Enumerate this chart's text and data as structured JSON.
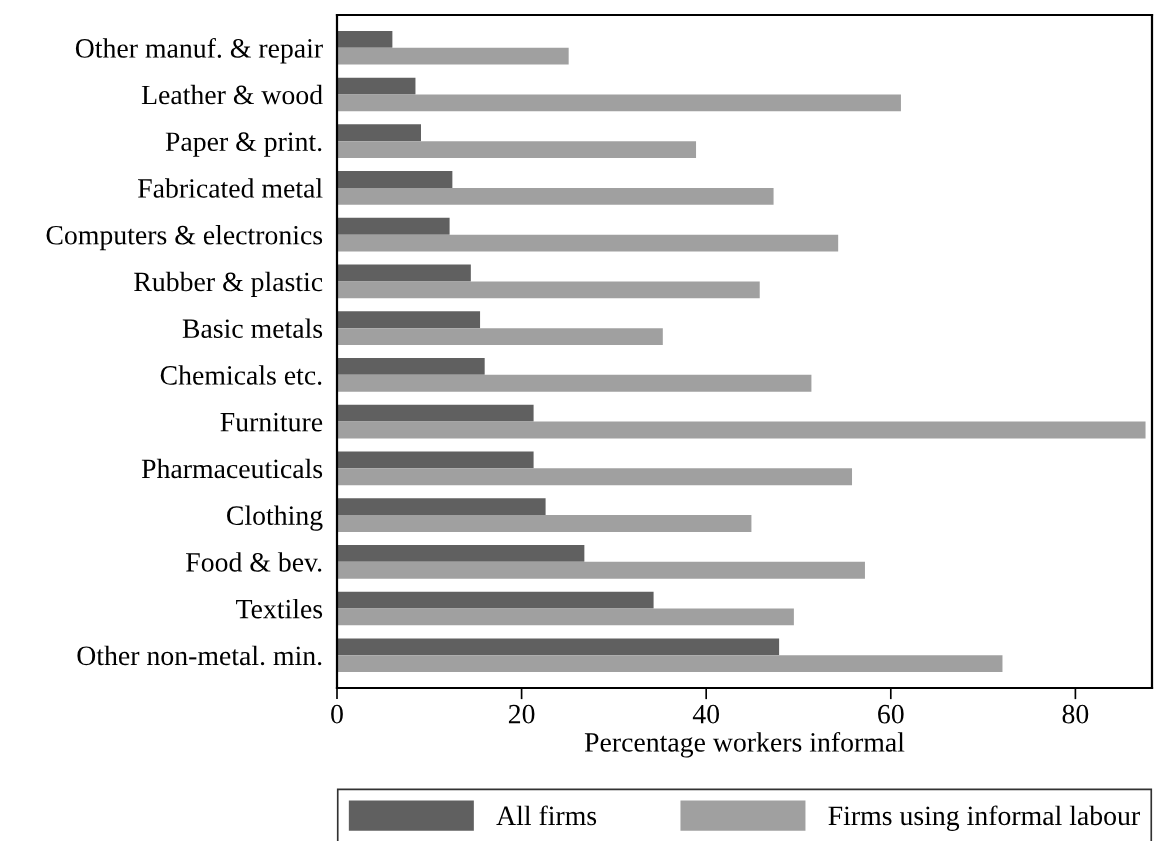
{
  "chart_data": {
    "type": "bar",
    "orientation": "horizontal",
    "xlabel": "Percentage workers informal",
    "categories": [
      "Other manuf. & repair",
      "Leather & wood",
      "Paper & print.",
      "Fabricated metal",
      "Computers & electronics",
      "Rubber & plastic",
      "Basic metals",
      "Chemicals etc.",
      "Furniture",
      "Pharmaceuticals",
      "Clothing",
      "Food & bev.",
      "Textiles",
      "Other non-metal. min."
    ],
    "series": [
      {
        "name": "All firms",
        "color": "#606060",
        "values": [
          6.0,
          8.5,
          9.1,
          12.5,
          12.2,
          14.5,
          15.5,
          16.0,
          21.3,
          21.3,
          22.6,
          26.8,
          34.3,
          47.9
        ]
      },
      {
        "name": "Firms using informal labour",
        "color": "#a0a0a0",
        "values": [
          25.1,
          61.1,
          38.9,
          47.3,
          54.3,
          45.8,
          35.3,
          51.4,
          87.6,
          55.8,
          44.9,
          57.2,
          49.5,
          72.1
        ]
      }
    ],
    "xlim": [
      0,
      88.3
    ],
    "xticks": [
      0,
      20,
      40,
      60,
      80
    ],
    "grid": false,
    "legend": "bottom"
  }
}
